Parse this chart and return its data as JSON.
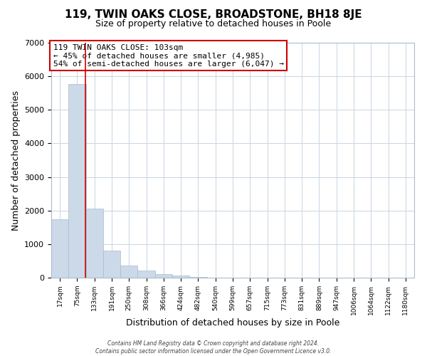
{
  "title": "119, TWIN OAKS CLOSE, BROADSTONE, BH18 8JE",
  "subtitle": "Size of property relative to detached houses in Poole",
  "xlabel": "Distribution of detached houses by size in Poole",
  "ylabel": "Number of detached properties",
  "bar_labels": [
    "17sqm",
    "75sqm",
    "133sqm",
    "191sqm",
    "250sqm",
    "308sqm",
    "366sqm",
    "424sqm",
    "482sqm",
    "540sqm",
    "599sqm",
    "657sqm",
    "715sqm",
    "773sqm",
    "831sqm",
    "889sqm",
    "947sqm",
    "1006sqm",
    "1064sqm",
    "1122sqm",
    "1180sqm"
  ],
  "bar_values": [
    1750,
    5780,
    2060,
    800,
    370,
    220,
    100,
    60,
    30,
    10,
    5,
    2,
    1,
    0,
    0,
    0,
    0,
    0,
    0,
    0,
    0
  ],
  "bar_color": "#ccd9e8",
  "bar_edge_color": "#aabbcc",
  "property_line_color": "#cc0000",
  "annotation_title": "119 TWIN OAKS CLOSE: 103sqm",
  "annotation_line1": "← 45% of detached houses are smaller (4,985)",
  "annotation_line2": "54% of semi-detached houses are larger (6,047) →",
  "annotation_box_color": "#cc0000",
  "ylim": [
    0,
    7000
  ],
  "yticks": [
    0,
    1000,
    2000,
    3000,
    4000,
    5000,
    6000,
    7000
  ],
  "footer_line1": "Contains HM Land Registry data © Crown copyright and database right 2024.",
  "footer_line2": "Contains public sector information licensed under the Open Government Licence v3.0.",
  "grid_color": "#c8d5e2",
  "fig_width": 6.0,
  "fig_height": 5.0,
  "dpi": 100
}
